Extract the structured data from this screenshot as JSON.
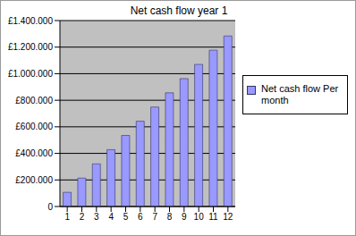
{
  "chart_data": {
    "type": "bar",
    "title": "Net cash flow year 1",
    "categories": [
      "1",
      "2",
      "3",
      "4",
      "5",
      "6",
      "7",
      "8",
      "9",
      "10",
      "11",
      "12"
    ],
    "series": [
      {
        "name": "Net cash flow Per month",
        "color": "#9999ff",
        "values": [
          107000,
          214000,
          321000,
          428000,
          535000,
          642000,
          749000,
          856000,
          963000,
          1070000,
          1177000,
          1284000
        ]
      }
    ],
    "ylim": [
      0,
      1400000
    ],
    "yticks": [
      0,
      {
        "value": 200000,
        "label": "£200.000"
      },
      {
        "value": 400000,
        "label": "£400.000"
      },
      {
        "value": 600000,
        "label": "£600.000"
      },
      {
        "value": 800000,
        "label": "£800.000"
      },
      {
        "value": 1000000,
        "label": "£1.000.000"
      },
      {
        "value": 1200000,
        "label": "£1.200.000"
      },
      {
        "value": 1400000,
        "label": "£1.400.000"
      }
    ],
    "grid": true,
    "legend": "right"
  }
}
